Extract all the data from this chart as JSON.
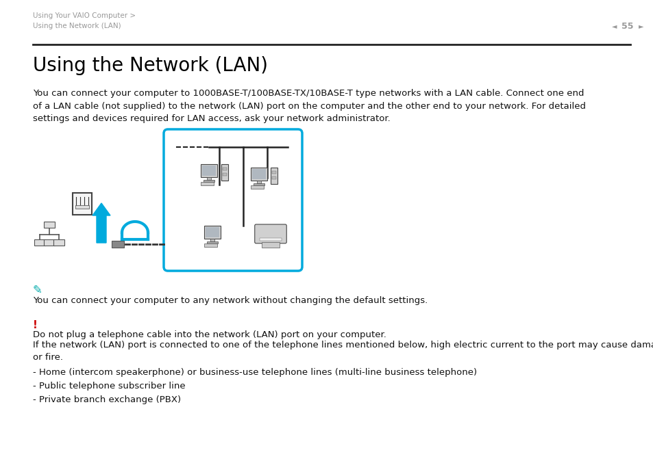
{
  "bg_color": "#ffffff",
  "header_text_line1": "Using Your VAIO Computer >",
  "header_text_line2": "Using the Network (LAN)",
  "header_page_num": "55",
  "header_text_color": "#999999",
  "header_line_color": "#222222",
  "title": "Using the Network (LAN)",
  "title_fontsize": 20,
  "title_color": "#000000",
  "body_text": "You can connect your computer to 1000BASE-T/100BASE-TX/10BASE-T type networks with a LAN cable. Connect one end\nof a LAN cable (not supplied) to the network (LAN) port on the computer and the other end to your network. For detailed\nsettings and devices required for LAN access, ask your network administrator.",
  "body_fontsize": 9.5,
  "body_color": "#111111",
  "note_icon_color": "#00aaaa",
  "note_text": "You can connect your computer to any network without changing the default settings.",
  "warning_icon_color": "#cc0000",
  "warning_text_line1": "Do not plug a telephone cable into the network (LAN) port on your computer.",
  "warning_text_line2": "If the network (LAN) port is connected to one of the telephone lines mentioned below, high electric current to the port may cause damage, overheating,\nor fire.",
  "bullet1": "- Home (intercom speakerphone) or business-use telephone lines (multi-line business telephone)",
  "bullet2": "- Public telephone subscriber line",
  "bullet3": "- Private branch exchange (PBX)",
  "box_border_color": "#00aadd",
  "box_fill_color": "#ffffff"
}
